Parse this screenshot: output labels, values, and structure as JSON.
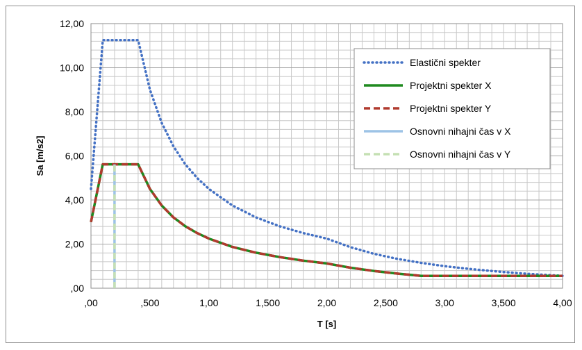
{
  "chart_data": {
    "type": "line",
    "title": "",
    "xlabel": "T [s]",
    "ylabel": "Sa [m/s2]",
    "xlim": [
      0,
      4
    ],
    "ylim": [
      0,
      12
    ],
    "x_ticks": [
      ",00",
      ",500",
      "1,00",
      "1,500",
      "2,00",
      "2,500",
      "3,00",
      "3,500",
      "4,00"
    ],
    "y_ticks": [
      ",00",
      "2,00",
      "4,00",
      "6,00",
      "8,00",
      "10,00",
      "12,00"
    ],
    "grid": "on (major and minor)",
    "legend_position": "top-right",
    "series": [
      {
        "name": "Elastični spekter",
        "color": "#4471c4",
        "style": "dotted",
        "x": [
          0,
          0.1,
          0.2,
          0.3,
          0.4,
          0.5,
          0.6,
          0.7,
          0.8,
          0.9,
          1.0,
          1.2,
          1.4,
          1.6,
          1.8,
          2.0,
          2.2,
          2.4,
          2.6,
          2.8,
          3.0,
          3.2,
          3.4,
          3.6,
          3.8,
          4.0
        ],
        "y": [
          4.5,
          11.25,
          11.25,
          11.25,
          11.25,
          9.0,
          7.5,
          6.43,
          5.62,
          5.0,
          4.5,
          3.75,
          3.21,
          2.81,
          2.5,
          2.25,
          1.86,
          1.56,
          1.33,
          1.15,
          1.0,
          0.88,
          0.78,
          0.69,
          0.62,
          0.56
        ]
      },
      {
        "name": "Projektni spekter X",
        "color": "#1f8a1f",
        "style": "solid",
        "x": [
          0,
          0.1,
          0.2,
          0.3,
          0.4,
          0.5,
          0.6,
          0.7,
          0.8,
          0.9,
          1.0,
          1.2,
          1.4,
          1.6,
          1.8,
          2.0,
          2.2,
          2.4,
          2.6,
          2.8,
          3.0,
          3.2,
          3.4,
          3.6,
          3.8,
          4.0
        ],
        "y": [
          3.0,
          5.62,
          5.62,
          5.62,
          5.62,
          4.5,
          3.75,
          3.21,
          2.81,
          2.5,
          2.25,
          1.87,
          1.61,
          1.41,
          1.25,
          1.12,
          0.93,
          0.78,
          0.66,
          0.56,
          0.56,
          0.56,
          0.56,
          0.56,
          0.56,
          0.56
        ]
      },
      {
        "name": "Projektni spekter Y",
        "color": "#b03a2e",
        "style": "dashed",
        "x": [
          0,
          0.1,
          0.2,
          0.3,
          0.4,
          0.5,
          0.6,
          0.7,
          0.8,
          0.9,
          1.0,
          1.2,
          1.4,
          1.6,
          1.8,
          2.0,
          2.2,
          2.4,
          2.6,
          2.8,
          3.0,
          3.2,
          3.4,
          3.6,
          3.8,
          4.0
        ],
        "y": [
          3.0,
          5.62,
          5.62,
          5.62,
          5.62,
          4.5,
          3.75,
          3.21,
          2.81,
          2.5,
          2.25,
          1.87,
          1.61,
          1.41,
          1.25,
          1.12,
          0.93,
          0.78,
          0.66,
          0.56,
          0.56,
          0.56,
          0.56,
          0.56,
          0.56,
          0.56
        ]
      },
      {
        "name": "Osnovni nihajni čas v X",
        "color": "#9dc3e6",
        "style": "solid",
        "x": [
          0.2,
          0.2
        ],
        "y": [
          0,
          5.62
        ]
      },
      {
        "name": "Osnovni nihajni čas v Y",
        "color": "#c5e0b4",
        "style": "dashed",
        "x": [
          0.2,
          0.2
        ],
        "y": [
          0,
          5.62
        ]
      }
    ]
  }
}
